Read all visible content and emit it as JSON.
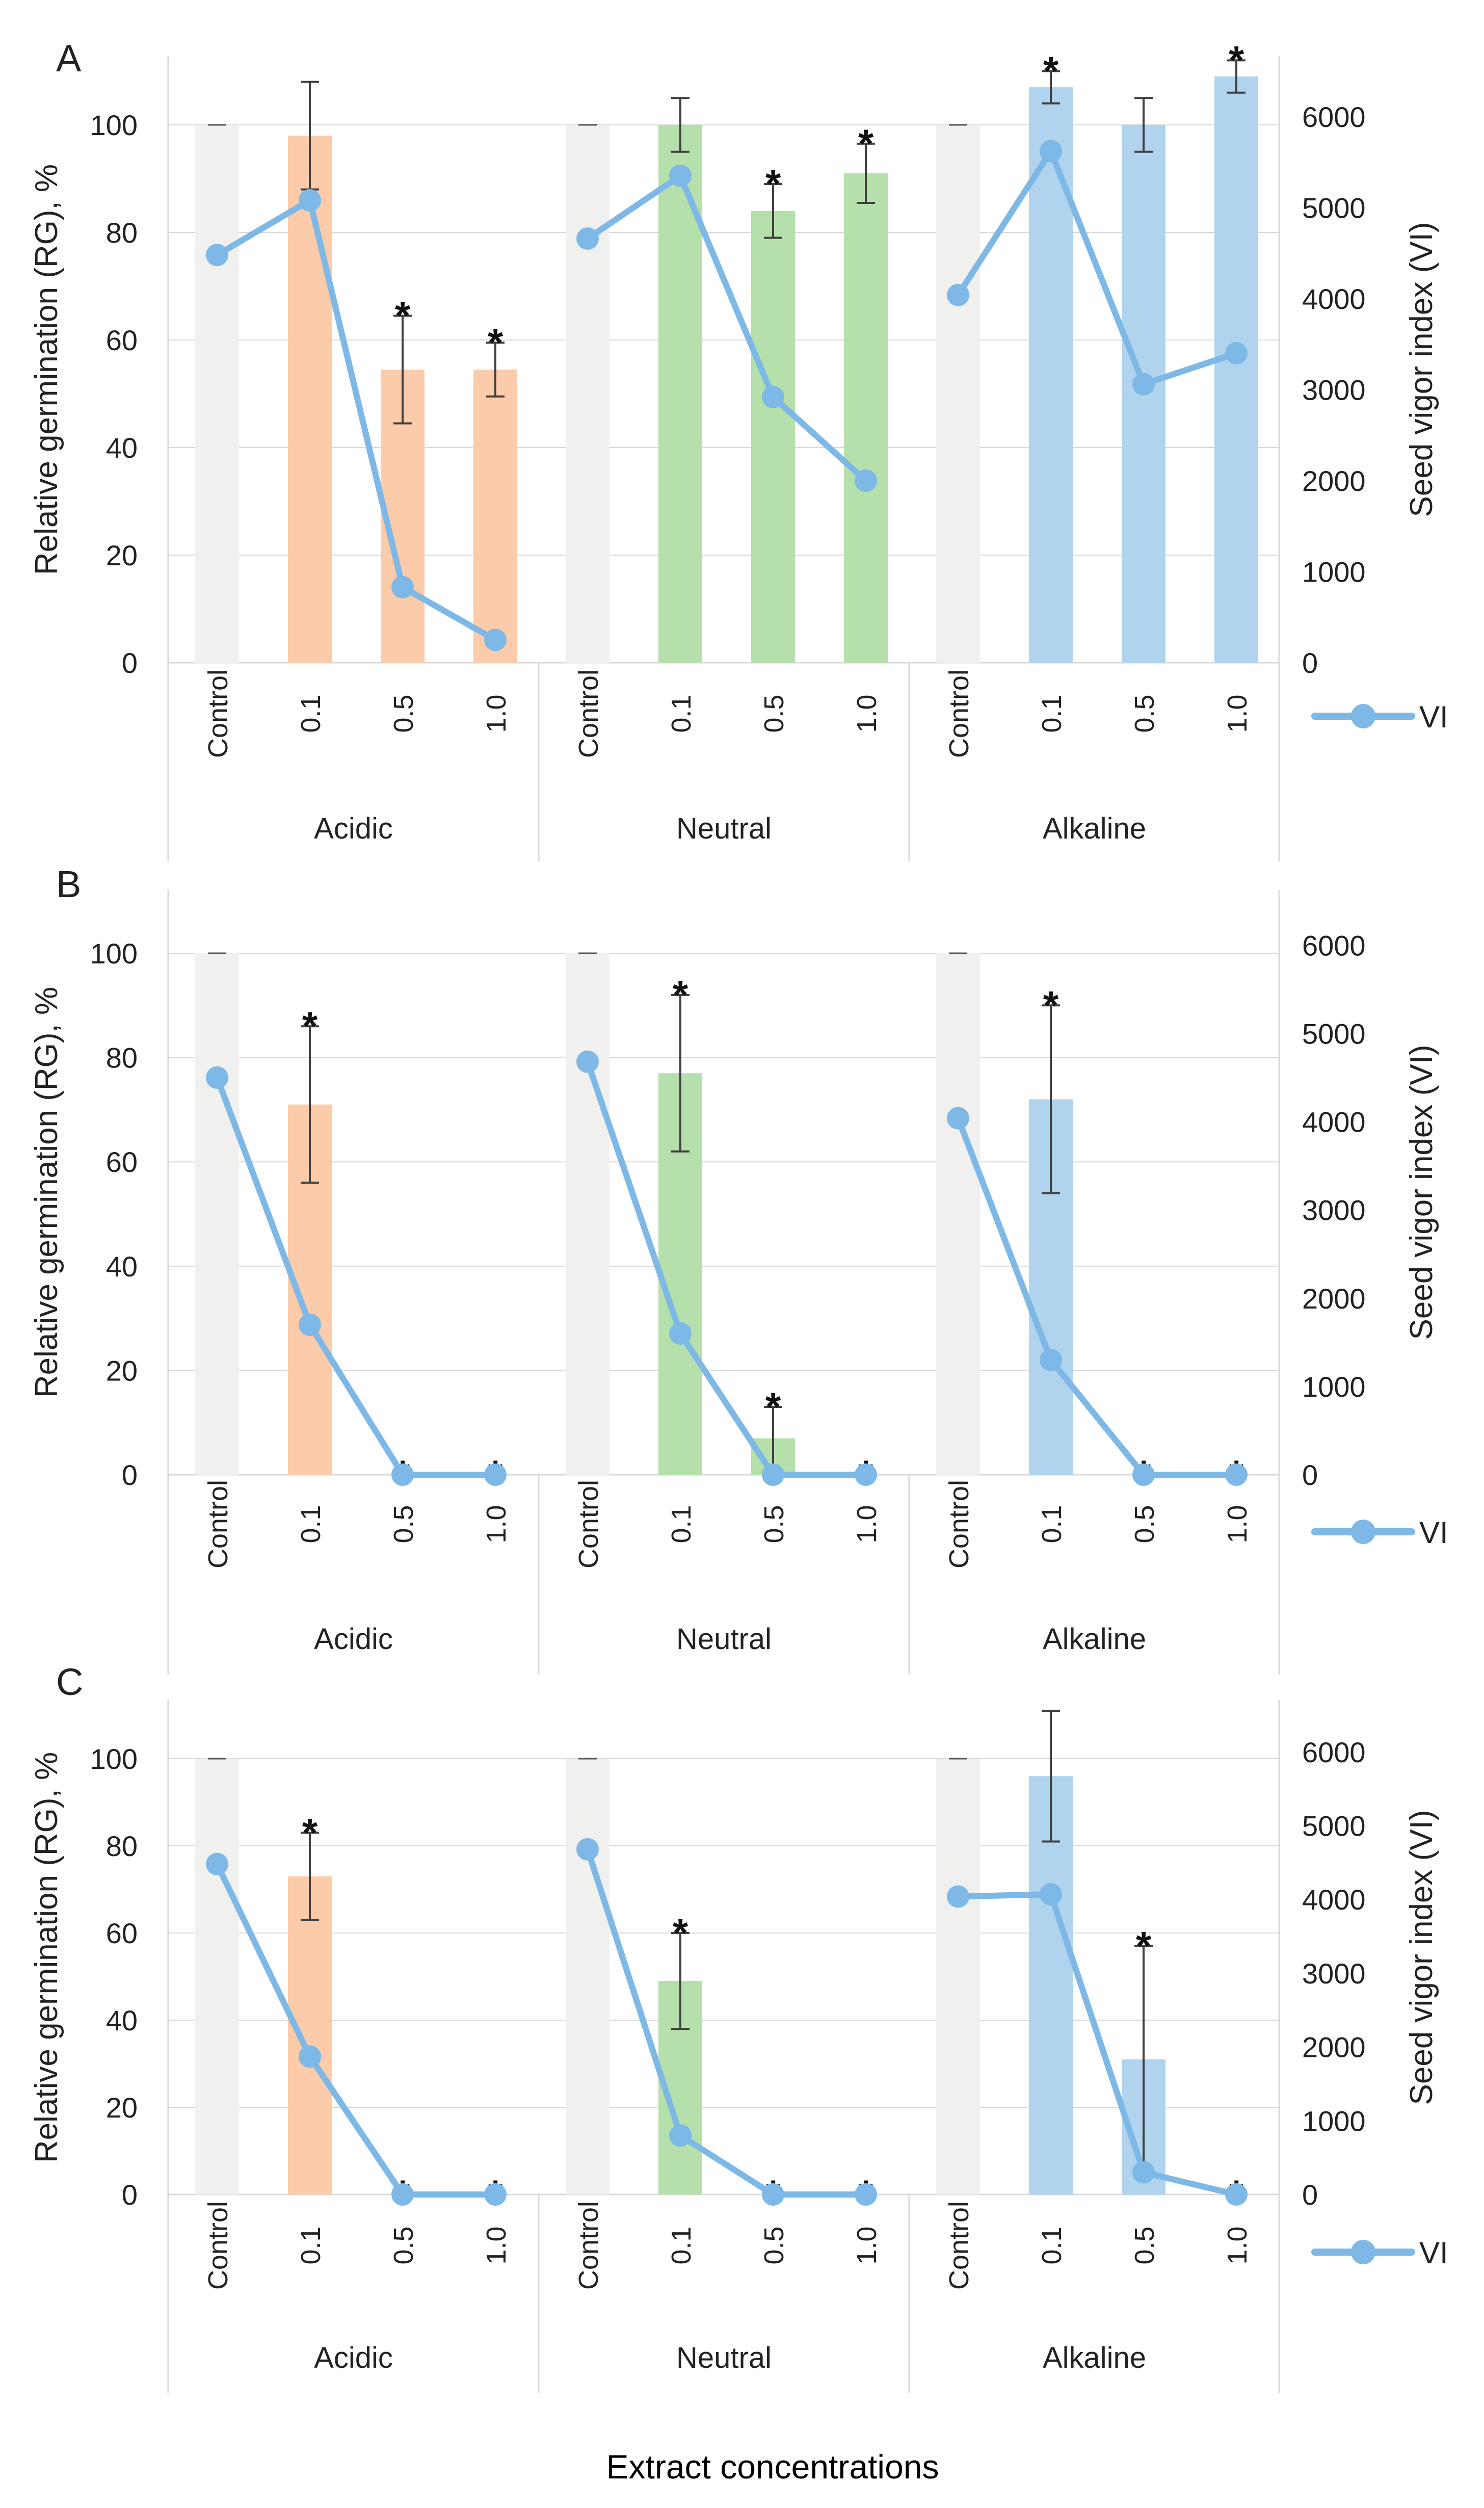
{
  "figure": {
    "x_axis_title": "Extract concentrations",
    "legend_label": "VI",
    "colors": {
      "control": "#f0f0ee",
      "Acidic": "#fbcbaa",
      "Neutral": "#b6e0ab",
      "Alkaline": "#b0d4ee",
      "line": "#7db8e6",
      "axis": "#d9d9d9",
      "errbar": "#404040",
      "text": "#222222",
      "star": "#111111"
    }
  },
  "chart_data": [
    {
      "type": "bar",
      "panel_label": "A",
      "ylabel": "Relative germination (RG), %",
      "y2label": "Seed vigor index (VI)",
      "ylim": [
        0,
        110
      ],
      "yticks": [
        "0",
        "20",
        "40",
        "60",
        "80",
        "100"
      ],
      "y2lim": [
        0,
        6500
      ],
      "y2ticks": [
        "0",
        "1000",
        "2000",
        "3000",
        "4000",
        "5000",
        "6000"
      ],
      "groups": [
        "Acidic",
        "Neutral",
        "Alkaline"
      ],
      "categories": [
        "Control",
        "0.1",
        "0.5",
        "1.0"
      ],
      "rg": [
        [
          100,
          98,
          54.5,
          54.5
        ],
        [
          100,
          100,
          84,
          91
        ],
        [
          100,
          107,
          100,
          109
        ]
      ],
      "rg_err": [
        [
          0,
          10,
          10,
          5
        ],
        [
          0,
          5,
          5,
          5.5
        ],
        [
          0,
          3,
          5,
          3
        ]
      ],
      "vi": [
        [
          4480,
          5080,
          830,
          250
        ],
        [
          4660,
          5350,
          2920,
          2000
        ],
        [
          4040,
          5620,
          3060,
          3400
        ]
      ],
      "sig": [
        [
          false,
          false,
          true,
          true
        ],
        [
          false,
          false,
          true,
          true
        ],
        [
          false,
          true,
          false,
          true
        ]
      ],
      "star_symbol": "*",
      "series": [
        {
          "name": "RG"
        },
        {
          "name": "VI"
        }
      ]
    },
    {
      "type": "bar",
      "panel_label": "B",
      "ylabel": "Relative germination (RG), %",
      "y2label": "Seed vigor index (VI)",
      "ylim": [
        0,
        110
      ],
      "yticks": [
        "0",
        "20",
        "40",
        "60",
        "80",
        "100"
      ],
      "y2lim": [
        0,
        6500
      ],
      "y2ticks": [
        "0",
        "1000",
        "2000",
        "3000",
        "4000",
        "5000",
        "6000"
      ],
      "groups": [
        "Acidic",
        "Neutral",
        "Alkaline"
      ],
      "categories": [
        "Control",
        "0.1",
        "0.5",
        "1.0"
      ],
      "rg": [
        [
          100,
          71,
          0,
          0
        ],
        [
          100,
          77,
          7,
          0
        ],
        [
          100,
          72,
          0,
          0
        ]
      ],
      "rg_err": [
        [
          0,
          15,
          0,
          0
        ],
        [
          0,
          15,
          6,
          0
        ],
        [
          0,
          18,
          0,
          0
        ]
      ],
      "vi": [
        [
          4500,
          1700,
          0,
          0
        ],
        [
          4680,
          1600,
          0,
          0
        ],
        [
          4040,
          1300,
          0,
          0
        ]
      ],
      "sig": [
        [
          false,
          true,
          true,
          true
        ],
        [
          false,
          true,
          true,
          true
        ],
        [
          false,
          true,
          true,
          true
        ]
      ],
      "star_symbol": "*",
      "series": [
        {
          "name": "RG"
        },
        {
          "name": "VI"
        }
      ]
    },
    {
      "type": "bar",
      "panel_label": "C",
      "ylabel": "Relative germination (RG), %",
      "y2label": "Seed vigor index (VI)",
      "ylim": [
        0,
        110
      ],
      "yticks": [
        "0",
        "20",
        "40",
        "60",
        "80",
        "100"
      ],
      "y2lim": [
        0,
        6500
      ],
      "y2ticks": [
        "0",
        "1000",
        "2000",
        "3000",
        "4000",
        "5000",
        "6000"
      ],
      "groups": [
        "Acidic",
        "Neutral",
        "Alkaline"
      ],
      "categories": [
        "Control",
        "0.1",
        "0.5",
        "1.0"
      ],
      "rg": [
        [
          100,
          73,
          0,
          0
        ],
        [
          100,
          49,
          0,
          0
        ],
        [
          100,
          96,
          31,
          0
        ]
      ],
      "rg_err": [
        [
          0,
          10,
          0,
          0
        ],
        [
          0,
          11,
          0,
          0
        ],
        [
          0,
          15,
          26,
          0
        ]
      ],
      "vi": [
        [
          4480,
          1870,
          0,
          0
        ],
        [
          4680,
          800,
          0,
          0
        ],
        [
          4040,
          4070,
          300,
          0
        ]
      ],
      "sig": [
        [
          false,
          true,
          true,
          true
        ],
        [
          false,
          true,
          true,
          true
        ],
        [
          false,
          false,
          true,
          true
        ]
      ],
      "star_symbol": "*",
      "series": [
        {
          "name": "RG"
        },
        {
          "name": "VI"
        }
      ]
    }
  ]
}
